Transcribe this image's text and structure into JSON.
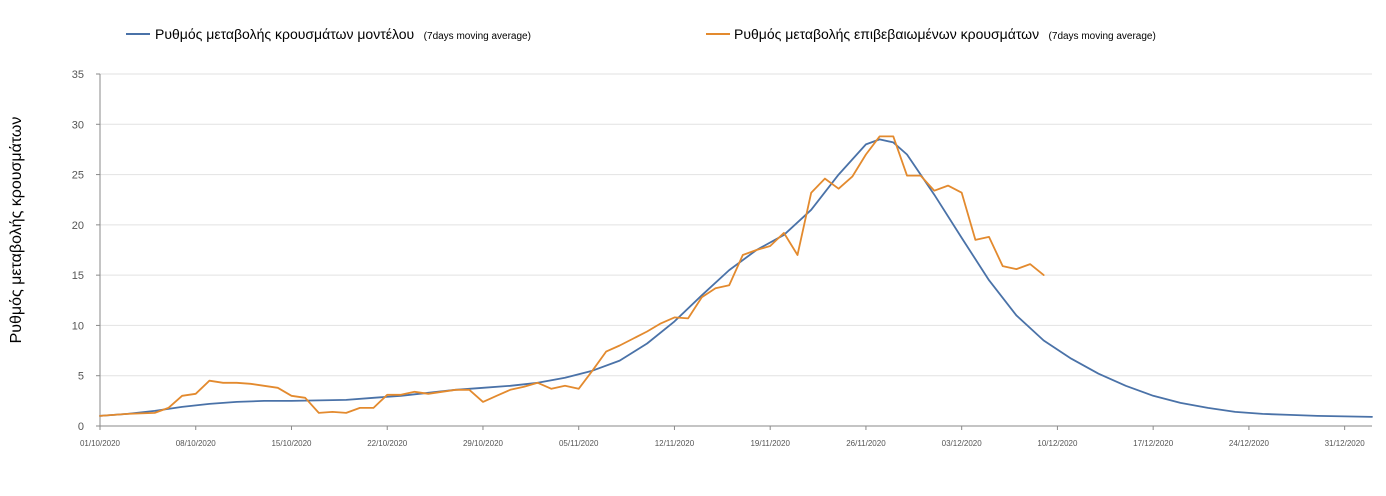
{
  "chart_data": {
    "type": "line",
    "title": "",
    "xlabel": "",
    "ylabel": "Ρυθμός μεταβολής κρουσμάτων",
    "ylim": [
      0,
      35
    ],
    "yticks": [
      0,
      5,
      10,
      15,
      20,
      25,
      30,
      35
    ],
    "xlim": [
      "2020-10-01",
      "2021-01-02"
    ],
    "xtick_labels": [
      "01/10/2020",
      "08/10/2020",
      "15/10/2020",
      "22/10/2020",
      "29/10/2020",
      "05/11/2020",
      "12/11/2020",
      "19/11/2020",
      "26/11/2020",
      "03/12/2020",
      "10/12/2020",
      "17/12/2020",
      "24/12/2020",
      "31/12/2020"
    ],
    "xtick_dates": [
      "2020-10-01",
      "2020-10-08",
      "2020-10-15",
      "2020-10-22",
      "2020-10-29",
      "2020-11-05",
      "2020-11-12",
      "2020-11-19",
      "2020-11-26",
      "2020-12-03",
      "2020-12-10",
      "2020-12-17",
      "2020-12-24",
      "2020-12-31"
    ],
    "grid": "horizontal",
    "legend_position": "top",
    "series": [
      {
        "name": "Ρυθμός μεταβολής κρουσμάτων μοντέλου",
        "name_note": "(7days moving average)",
        "color": "#4a72a8",
        "points": [
          [
            "2020-10-01",
            1.0
          ],
          [
            "2020-10-03",
            1.2
          ],
          [
            "2020-10-05",
            1.5
          ],
          [
            "2020-10-07",
            1.9
          ],
          [
            "2020-10-09",
            2.2
          ],
          [
            "2020-10-11",
            2.4
          ],
          [
            "2020-10-13",
            2.5
          ],
          [
            "2020-10-15",
            2.5
          ],
          [
            "2020-10-17",
            2.55
          ],
          [
            "2020-10-19",
            2.6
          ],
          [
            "2020-10-21",
            2.8
          ],
          [
            "2020-10-23",
            3.0
          ],
          [
            "2020-10-25",
            3.3
          ],
          [
            "2020-10-27",
            3.6
          ],
          [
            "2020-10-29",
            3.8
          ],
          [
            "2020-10-31",
            4.0
          ],
          [
            "2020-11-02",
            4.3
          ],
          [
            "2020-11-04",
            4.8
          ],
          [
            "2020-11-06",
            5.5
          ],
          [
            "2020-11-08",
            6.5
          ],
          [
            "2020-11-10",
            8.2
          ],
          [
            "2020-11-12",
            10.4
          ],
          [
            "2020-11-14",
            13.0
          ],
          [
            "2020-11-16",
            15.5
          ],
          [
            "2020-11-18",
            17.5
          ],
          [
            "2020-11-20",
            19.0
          ],
          [
            "2020-11-22",
            21.5
          ],
          [
            "2020-11-24",
            25.0
          ],
          [
            "2020-11-26",
            28.0
          ],
          [
            "2020-11-27",
            28.5
          ],
          [
            "2020-11-28",
            28.2
          ],
          [
            "2020-11-29",
            27.0
          ],
          [
            "2020-12-01",
            23.0
          ],
          [
            "2020-12-03",
            18.7
          ],
          [
            "2020-12-05",
            14.5
          ],
          [
            "2020-12-07",
            11.0
          ],
          [
            "2020-12-09",
            8.5
          ],
          [
            "2020-12-11",
            6.7
          ],
          [
            "2020-12-13",
            5.2
          ],
          [
            "2020-12-15",
            4.0
          ],
          [
            "2020-12-17",
            3.0
          ],
          [
            "2020-12-19",
            2.3
          ],
          [
            "2020-12-21",
            1.8
          ],
          [
            "2020-12-23",
            1.4
          ],
          [
            "2020-12-25",
            1.2
          ],
          [
            "2020-12-27",
            1.1
          ],
          [
            "2020-12-29",
            1.0
          ],
          [
            "2021-01-02",
            0.9
          ]
        ]
      },
      {
        "name": "Ρυθμός μεταβολής επιβεβαιωμένων κρουσμάτων",
        "name_note": "(7days moving average)",
        "color": "#e38a2e",
        "points": [
          [
            "2020-10-01",
            1.0
          ],
          [
            "2020-10-03",
            1.2
          ],
          [
            "2020-10-05",
            1.3
          ],
          [
            "2020-10-06",
            1.8
          ],
          [
            "2020-10-07",
            3.0
          ],
          [
            "2020-10-08",
            3.2
          ],
          [
            "2020-10-09",
            4.5
          ],
          [
            "2020-10-10",
            4.3
          ],
          [
            "2020-10-11",
            4.3
          ],
          [
            "2020-10-12",
            4.2
          ],
          [
            "2020-10-13",
            4.0
          ],
          [
            "2020-10-14",
            3.8
          ],
          [
            "2020-10-15",
            3.0
          ],
          [
            "2020-10-16",
            2.8
          ],
          [
            "2020-10-17",
            1.3
          ],
          [
            "2020-10-18",
            1.4
          ],
          [
            "2020-10-19",
            1.3
          ],
          [
            "2020-10-20",
            1.8
          ],
          [
            "2020-10-21",
            1.8
          ],
          [
            "2020-10-22",
            3.1
          ],
          [
            "2020-10-23",
            3.1
          ],
          [
            "2020-10-24",
            3.4
          ],
          [
            "2020-10-25",
            3.2
          ],
          [
            "2020-10-26",
            3.4
          ],
          [
            "2020-10-27",
            3.6
          ],
          [
            "2020-10-28",
            3.6
          ],
          [
            "2020-10-29",
            2.4
          ],
          [
            "2020-10-30",
            3.0
          ],
          [
            "2020-10-31",
            3.6
          ],
          [
            "2020-11-01",
            3.9
          ],
          [
            "2020-11-02",
            4.3
          ],
          [
            "2020-11-03",
            3.7
          ],
          [
            "2020-11-04",
            4.0
          ],
          [
            "2020-11-05",
            3.7
          ],
          [
            "2020-11-06",
            5.5
          ],
          [
            "2020-11-07",
            7.4
          ],
          [
            "2020-11-08",
            8.0
          ],
          [
            "2020-11-09",
            8.7
          ],
          [
            "2020-11-10",
            9.4
          ],
          [
            "2020-11-11",
            10.2
          ],
          [
            "2020-11-12",
            10.8
          ],
          [
            "2020-11-13",
            10.7
          ],
          [
            "2020-11-14",
            12.8
          ],
          [
            "2020-11-15",
            13.7
          ],
          [
            "2020-11-16",
            14.0
          ],
          [
            "2020-11-17",
            17.0
          ],
          [
            "2020-11-18",
            17.5
          ],
          [
            "2020-11-19",
            17.9
          ],
          [
            "2020-11-20",
            19.2
          ],
          [
            "2020-11-21",
            17.0
          ],
          [
            "2020-11-22",
            23.2
          ],
          [
            "2020-11-23",
            24.6
          ],
          [
            "2020-11-24",
            23.6
          ],
          [
            "2020-11-25",
            24.8
          ],
          [
            "2020-11-26",
            27.0
          ],
          [
            "2020-11-27",
            28.8
          ],
          [
            "2020-11-28",
            28.8
          ],
          [
            "2020-11-29",
            24.9
          ],
          [
            "2020-11-30",
            24.9
          ],
          [
            "2020-12-01",
            23.4
          ],
          [
            "2020-12-02",
            23.9
          ],
          [
            "2020-12-03",
            23.2
          ],
          [
            "2020-12-04",
            18.5
          ],
          [
            "2020-12-05",
            18.8
          ],
          [
            "2020-12-06",
            15.9
          ],
          [
            "2020-12-07",
            15.6
          ],
          [
            "2020-12-08",
            16.1
          ],
          [
            "2020-12-09",
            15.0
          ]
        ]
      }
    ]
  }
}
